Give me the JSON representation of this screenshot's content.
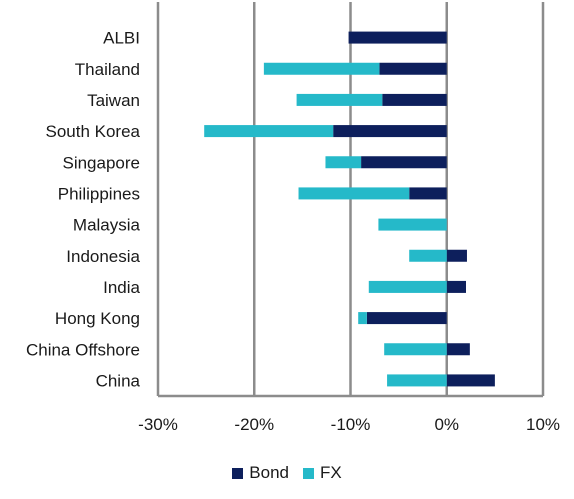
{
  "chart_data": {
    "type": "bar",
    "orientation": "horizontal",
    "stacked": true,
    "categories": [
      "ALBI",
      "Thailand",
      "Taiwan",
      "South Korea",
      "Singapore",
      "Philippines",
      "Malaysia",
      "Indonesia",
      "India",
      "Hong Kong",
      "China Offshore",
      "China"
    ],
    "series": [
      {
        "name": "Bond",
        "color": "#0d1f5c",
        "values": [
          -10.2,
          -7.0,
          -6.7,
          -11.8,
          -8.9,
          -3.9,
          0.0,
          2.1,
          2.0,
          -8.3,
          2.4,
          5.0
        ]
      },
      {
        "name": "FX",
        "color": "#25b9c9",
        "values": [
          0.0,
          -12.0,
          -8.9,
          -13.4,
          -3.7,
          -11.5,
          -7.1,
          -3.9,
          -8.1,
          -0.9,
          -6.5,
          -6.2
        ]
      }
    ],
    "xlim": [
      -30,
      10
    ],
    "x_ticks": [
      -30,
      -20,
      -10,
      0,
      10
    ],
    "x_tick_labels": [
      "-30%",
      "-20%",
      "-10%",
      "0%",
      "10%"
    ],
    "grid": "vertical",
    "legend_position": "bottom"
  },
  "legend": {
    "bond_label": "Bond",
    "fx_label": "FX"
  }
}
